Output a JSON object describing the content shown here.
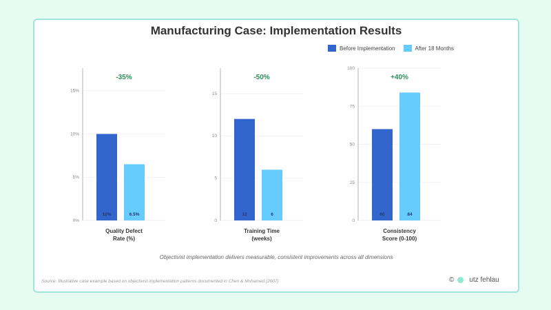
{
  "title": "Manufacturing Case: Implementation Results",
  "legend": [
    "Before Implementation",
    "After 18 Months"
  ],
  "colors": {
    "before": "#3366cc",
    "after": "#66ccff",
    "change": "#2e8b57"
  },
  "chart_data": [
    {
      "type": "bar",
      "xlabel": [
        "Quality Defect",
        "Rate (%)"
      ],
      "categories": [
        "Before Implementation",
        "After 18 Months"
      ],
      "values": [
        10,
        6.5
      ],
      "labels": [
        "10%",
        "6.5%"
      ],
      "change": "-35%",
      "ylim": [
        0,
        17.6
      ],
      "ticks": [
        0,
        5,
        10,
        15
      ],
      "tick_labels": [
        "0%",
        "5%",
        "10%",
        "15%"
      ]
    },
    {
      "type": "bar",
      "xlabel": [
        "Training Time",
        "(weeks)"
      ],
      "categories": [
        "Before Implementation",
        "After 18 Months"
      ],
      "values": [
        12,
        6
      ],
      "labels": [
        "12",
        "6"
      ],
      "change": "-50%",
      "ylim": [
        0,
        18
      ],
      "ticks": [
        0,
        5,
        10,
        15
      ],
      "tick_labels": [
        "0",
        "5",
        "10",
        "15"
      ]
    },
    {
      "type": "bar",
      "xlabel": [
        "Consistency",
        "Score (0-100)"
      ],
      "categories": [
        "Before Implementation",
        "After 18 Months"
      ],
      "values": [
        60,
        84
      ],
      "labels": [
        "60",
        "84"
      ],
      "change": "+40%",
      "ylim": [
        0,
        100
      ],
      "ticks": [
        0,
        25,
        50,
        75,
        100
      ],
      "tick_labels": [
        "0",
        "25",
        "50",
        "75",
        "100"
      ]
    }
  ],
  "subtitle": "Objectivist implementation delivers measurable, consistent improvements across all dimensions",
  "source": "Source: Illustrative case example based on objectivist implementation patterns documented in Chen & Mohamed (2007)",
  "brand": {
    "copyright": "©",
    "name": "utz fehlau"
  }
}
